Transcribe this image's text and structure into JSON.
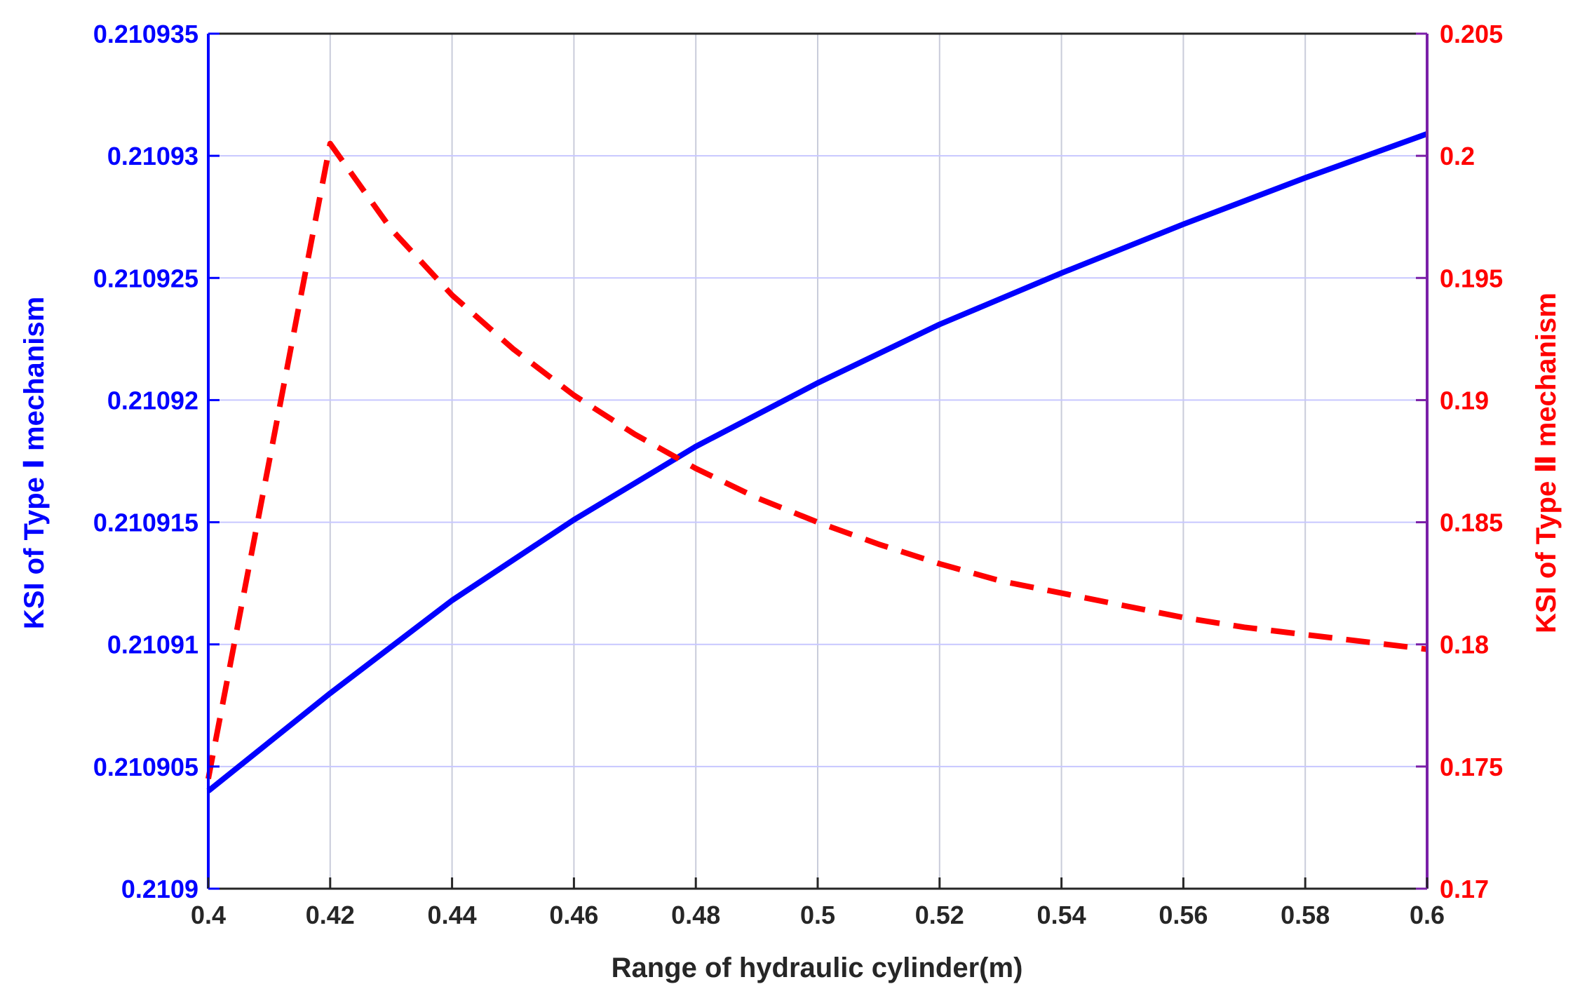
{
  "chart_data": {
    "type": "line",
    "xlabel": "Range of hydraulic cylinder(m)",
    "ylabel_left": "KSI of Type Ⅰ mechanism",
    "ylabel_right": "KSI of Type Ⅱ mechanism",
    "xlim": [
      0.4,
      0.6
    ],
    "ylim_left": [
      0.2109,
      0.210935
    ],
    "ylim_right": [
      0.17,
      0.205
    ],
    "x_ticks": [
      0.4,
      0.42,
      0.44,
      0.46,
      0.48,
      0.5,
      0.52,
      0.54,
      0.56,
      0.58,
      0.6
    ],
    "x_tick_labels": [
      "0.4",
      "0.42",
      "0.44",
      "0.46",
      "0.48",
      "0.5",
      "0.52",
      "0.54",
      "0.56",
      "0.58",
      "0.6"
    ],
    "y_left_ticks": [
      0.2109,
      0.210905,
      0.21091,
      0.210915,
      0.21092,
      0.210925,
      0.21093,
      0.210935
    ],
    "y_left_tick_labels": [
      "0.2109",
      "0.210905",
      "0.21091",
      "0.210915",
      "0.21092",
      "0.210925",
      "0.21093",
      "0.210935"
    ],
    "y_right_ticks": [
      0.17,
      0.175,
      0.18,
      0.185,
      0.19,
      0.195,
      0.2,
      0.205
    ],
    "y_right_tick_labels": [
      "0.17",
      "0.175",
      "0.18",
      "0.185",
      "0.19",
      "0.195",
      "0.2",
      "0.205"
    ],
    "grid": true,
    "series": [
      {
        "axis": "left",
        "color": "#0000ff",
        "style": "solid",
        "x": [
          0.4,
          0.42,
          0.44,
          0.46,
          0.48,
          0.5,
          0.52,
          0.54,
          0.56,
          0.58,
          0.6
        ],
        "values": [
          0.210904,
          0.210908,
          0.2109118,
          0.2109151,
          0.2109181,
          0.2109207,
          0.2109231,
          0.2109252,
          0.2109272,
          0.2109291,
          0.2109309
        ]
      },
      {
        "axis": "right",
        "color": "#ff0000",
        "style": "dashed",
        "x": [
          0.4,
          0.405,
          0.41,
          0.415,
          0.42,
          0.43,
          0.44,
          0.45,
          0.46,
          0.47,
          0.48,
          0.49,
          0.5,
          0.51,
          0.52,
          0.53,
          0.54,
          0.55,
          0.56,
          0.57,
          0.58,
          0.59,
          0.6
        ],
        "values": [
          0.1745,
          0.181,
          0.1875,
          0.194,
          0.2005,
          0.197,
          0.1943,
          0.1921,
          0.1902,
          0.1886,
          0.1872,
          0.186,
          0.185,
          0.1841,
          0.1833,
          0.1826,
          0.1821,
          0.1816,
          0.1811,
          0.1807,
          0.1804,
          0.1801,
          0.1798
        ]
      }
    ]
  }
}
